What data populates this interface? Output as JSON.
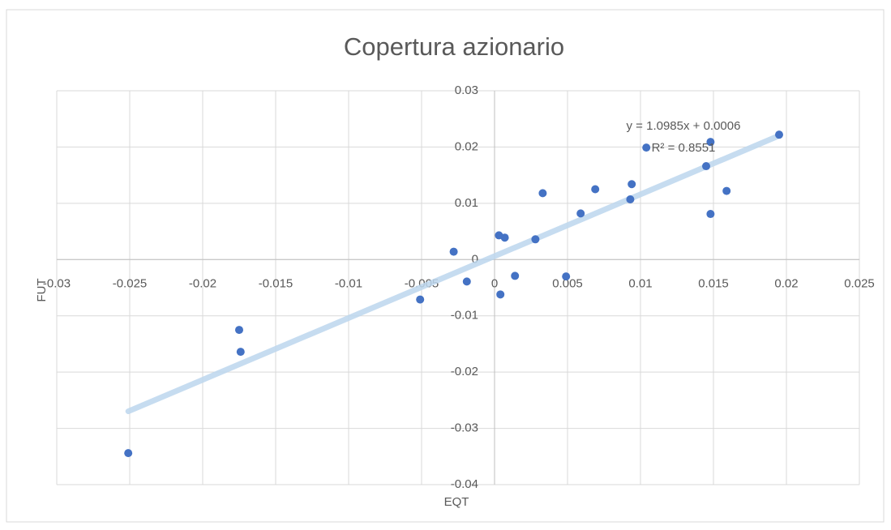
{
  "chart_data": {
    "type": "scatter",
    "title": "Copertura  azionario",
    "x_label": "EQT",
    "y_label": "FUT",
    "series": [
      {
        "color": "#4472c4",
        "x": [
          -0.0251,
          -0.0175,
          -0.0174,
          -0.0051,
          -0.0028,
          -0.0019,
          0.0003,
          0.0007,
          0.0004,
          0.0014,
          0.0028,
          0.0033,
          0.0049,
          0.0059,
          0.0069,
          0.0093,
          0.0094,
          0.0104,
          0.0145,
          0.0148,
          0.0148,
          0.0159,
          0.0195
        ],
        "values": [
          -0.0344,
          -0.0125,
          -0.0164,
          -0.0071,
          0.0014,
          -0.0039,
          0.0043,
          0.0039,
          -0.0062,
          -0.0029,
          0.0036,
          0.0118,
          -0.003,
          0.0082,
          0.0125,
          0.0107,
          0.0134,
          0.0199,
          0.0166,
          0.0209,
          0.0081,
          0.0122,
          0.0222
        ]
      }
    ],
    "trendline": {
      "slope": 1.0985,
      "intercept": 0.0006,
      "color": "#bdd7ee",
      "equation": "y = 1.0985x + 0.0006",
      "r2": "R² = 0.8551"
    },
    "xlim": [
      -0.03,
      0.025
    ],
    "xticks": [
      -0.03,
      -0.025,
      -0.02,
      -0.015,
      -0.01,
      -0.005,
      0,
      0.005,
      0.01,
      0.015,
      0.02,
      0.025
    ],
    "ylim": [
      -0.04,
      0.03
    ],
    "yticks": [
      0.03,
      0.02,
      0.01,
      0,
      -0.01,
      -0.02,
      -0.03,
      -0.04
    ],
    "grid": true
  }
}
